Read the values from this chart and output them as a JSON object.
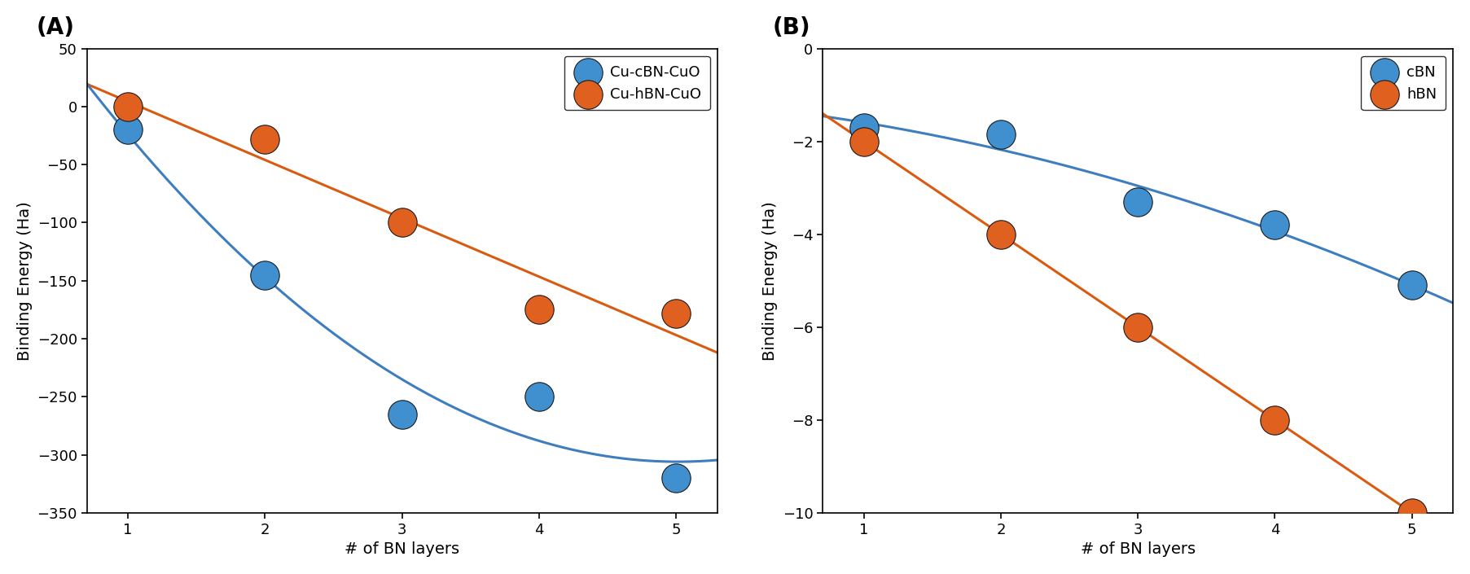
{
  "panel_A": {
    "label": "(A)",
    "blue_label": "Cu-cBN-CuO",
    "orange_label": "Cu-hBN-CuO",
    "blue_x": [
      1,
      2,
      3,
      4,
      5
    ],
    "blue_y": [
      -20,
      -145,
      -265,
      -250,
      -320
    ],
    "orange_x": [
      1,
      2,
      3,
      4,
      5
    ],
    "orange_y": [
      0,
      -28,
      -100,
      -175,
      -178
    ],
    "xlim": [
      0.7,
      5.3
    ],
    "ylim": [
      -350,
      50
    ],
    "yticks": [
      50,
      0,
      -50,
      -100,
      -150,
      -200,
      -250,
      -300,
      -350
    ],
    "xticks": [
      1,
      2,
      3,
      4,
      5
    ],
    "xlabel": "# of BN layers",
    "ylabel": "Binding Energy (Ha)"
  },
  "panel_B": {
    "label": "(B)",
    "blue_label": "cBN",
    "orange_label": "hBN",
    "blue_x": [
      1,
      2,
      3,
      4,
      5
    ],
    "blue_y": [
      -1.7,
      -1.85,
      -3.3,
      -3.8,
      -5.1
    ],
    "orange_x": [
      1,
      2,
      3,
      4,
      5
    ],
    "orange_y": [
      -2.0,
      -4.0,
      -6.0,
      -8.0,
      -10.0
    ],
    "xlim": [
      0.7,
      5.3
    ],
    "ylim": [
      -10,
      0
    ],
    "yticks": [
      0,
      -2,
      -4,
      -6,
      -8,
      -10
    ],
    "xticks": [
      1,
      2,
      3,
      4,
      5
    ],
    "xlabel": "# of BN layers",
    "ylabel": "Binding Energy (Ha)"
  },
  "blue_color": "#3E7EBF",
  "orange_color": "#D95B10",
  "marker_face_blue": "#4090D0",
  "marker_face_orange": "#E06020",
  "marker_edge_color": "#1A1A1A",
  "marker_size": 9,
  "marker_edge_width": 0.8,
  "line_width": 2.2,
  "font_size": 14,
  "tick_font_size": 13,
  "label_font_size": 20,
  "legend_font_size": 13,
  "figsize": [
    18.05,
    7.05
  ],
  "dpi": 100
}
